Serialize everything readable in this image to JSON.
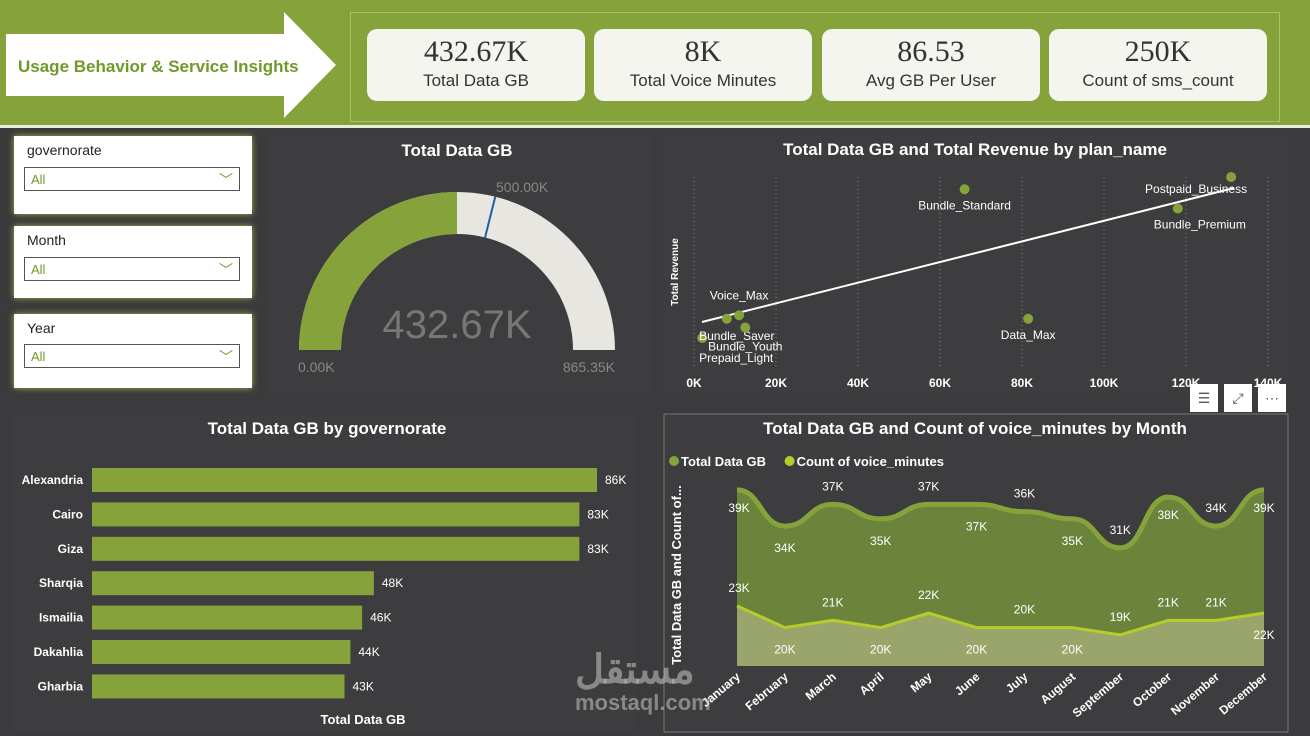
{
  "header": {
    "title": "Usage Behavior & Service Insights",
    "kpis": [
      {
        "value": "432.67K",
        "label": "Total Data GB"
      },
      {
        "value": "8K",
        "label": "Total Voice Minutes"
      },
      {
        "value": "86.53",
        "label": "Avg GB Per User"
      },
      {
        "value": "250K",
        "label": "Count of sms_count"
      }
    ]
  },
  "slicers": [
    {
      "label": "governorate",
      "value": "All"
    },
    {
      "label": "Month",
      "value": "All"
    },
    {
      "label": "Year",
      "value": "All"
    }
  ],
  "colors": {
    "accent": "#86a33b",
    "line2": "#b5cc2a",
    "dark": "#3b3a3c"
  },
  "visual_icons": [
    "filter-icon",
    "focus-mode-icon",
    "more-options-icon"
  ],
  "watermark": {
    "arabic": "مستقل",
    "latin": "mostaql.com"
  },
  "chart_data": [
    {
      "type": "gauge",
      "title": "Total Data GB",
      "value": 432.67,
      "value_label": "432.67K",
      "min_label": "0.00K",
      "max_label": "865.35K",
      "target_label": "500.00K",
      "min": 0,
      "max": 865.35,
      "target": 500
    },
    {
      "type": "scatter",
      "title": "Total Data GB and Total Revenue by plan_name",
      "ylabel": "Total Revenue",
      "xlim": [
        0,
        140
      ],
      "x_ticks": [
        "0K",
        "20K",
        "40K",
        "60K",
        "80K",
        "100K",
        "120K",
        "140K"
      ],
      "trendline": true,
      "points": [
        {
          "label": "Prepaid_Light",
          "x": 2,
          "y": 8
        },
        {
          "label": "Bundle_Saver",
          "x": 8,
          "y": 19
        },
        {
          "label": "Voice_Max",
          "x": 11,
          "y": 21
        },
        {
          "label": "Bundle_Youth",
          "x": 12.5,
          "y": 14
        },
        {
          "label": "Bundle_Standard",
          "x": 66,
          "y": 93
        },
        {
          "label": "Data_Max",
          "x": 81.5,
          "y": 19
        },
        {
          "label": "Bundle_Premium",
          "x": 118,
          "y": 82
        },
        {
          "label": "Postpaid_Business",
          "x": 131,
          "y": 100
        }
      ]
    },
    {
      "type": "bar",
      "title": "Total Data GB by governorate",
      "xlabel": "Total Data GB",
      "categories": [
        "Alexandria",
        "Cairo",
        "Giza",
        "Sharqia",
        "Ismailia",
        "Dakahlia",
        "Gharbia"
      ],
      "values": [
        86,
        83,
        83,
        48,
        46,
        44,
        43
      ],
      "data_labels": [
        "86K",
        "83K",
        "83K",
        "48K",
        "46K",
        "44K",
        "43K"
      ]
    },
    {
      "type": "area",
      "title": "Total Data GB and Count of voice_minutes by Month",
      "ylabel": "Total Data GB and Count of...",
      "legend": "top-left",
      "ylim": [
        14.7,
        40
      ],
      "categories": [
        "January",
        "February",
        "March",
        "April",
        "May",
        "June",
        "July",
        "August",
        "September",
        "October",
        "November",
        "December"
      ],
      "series": [
        {
          "name": "Total Data GB",
          "values": [
            39,
            34,
            37,
            35,
            37,
            37,
            36,
            35,
            31,
            38,
            34,
            39
          ]
        },
        {
          "name": "Count of voice_minutes",
          "values": [
            23,
            20,
            21,
            20,
            22,
            20,
            20,
            20,
            19,
            21,
            21,
            22
          ]
        }
      ]
    }
  ]
}
